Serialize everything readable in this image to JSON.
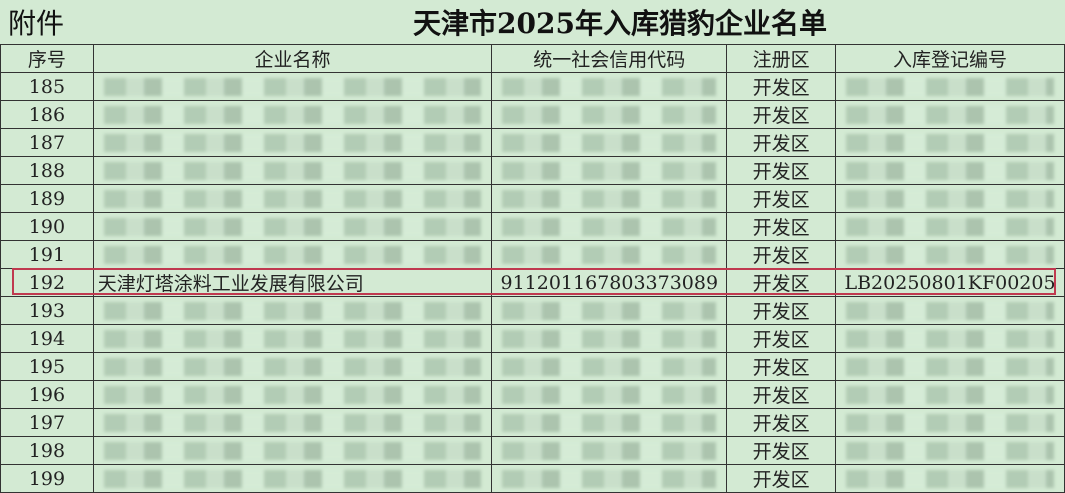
{
  "attachment_label": "附件",
  "title": "天津市2025年入库猎豹企业名单",
  "columns": [
    "序号",
    "企业名称",
    "统一社会信用代码",
    "注册区",
    "入库登记编号"
  ],
  "rows": [
    {
      "no": "185",
      "name": "",
      "code": "",
      "district": "开发区",
      "reg": ""
    },
    {
      "no": "186",
      "name": "",
      "code": "",
      "district": "开发区",
      "reg": ""
    },
    {
      "no": "187",
      "name": "",
      "code": "",
      "district": "开发区",
      "reg": ""
    },
    {
      "no": "188",
      "name": "",
      "code": "",
      "district": "开发区",
      "reg": ""
    },
    {
      "no": "189",
      "name": "",
      "code": "",
      "district": "开发区",
      "reg": ""
    },
    {
      "no": "190",
      "name": "",
      "code": "",
      "district": "开发区",
      "reg": ""
    },
    {
      "no": "191",
      "name": "",
      "code": "",
      "district": "开发区",
      "reg": ""
    },
    {
      "no": "192",
      "name": "天津灯塔涂料工业发展有限公司",
      "code": "911201167803373089",
      "district": "开发区",
      "reg": "LB20250801KF00205",
      "highlighted": true
    },
    {
      "no": "193",
      "name": "",
      "code": "",
      "district": "开发区",
      "reg": ""
    },
    {
      "no": "194",
      "name": "",
      "code": "",
      "district": "开发区",
      "reg": ""
    },
    {
      "no": "195",
      "name": "",
      "code": "",
      "district": "开发区",
      "reg": ""
    },
    {
      "no": "196",
      "name": "",
      "code": "",
      "district": "开发区",
      "reg": ""
    },
    {
      "no": "197",
      "name": "",
      "code": "",
      "district": "开发区",
      "reg": ""
    },
    {
      "no": "198",
      "name": "",
      "code": "",
      "district": "开发区",
      "reg": ""
    },
    {
      "no": "199",
      "name": "",
      "code": "",
      "district": "开发区",
      "reg": ""
    }
  ],
  "colors": {
    "background": "#d3ead3",
    "highlight_border": "#c0394f"
  }
}
